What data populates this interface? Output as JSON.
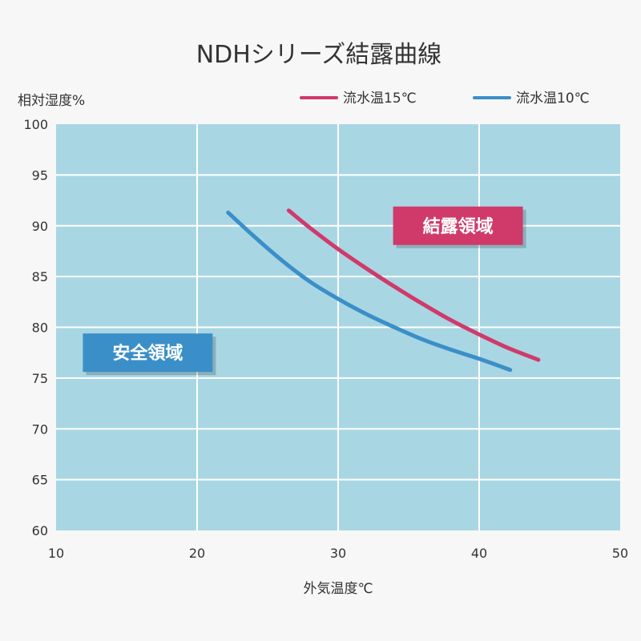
{
  "chart_data": {
    "type": "line",
    "title": "NDHシリーズ結露曲線",
    "xlabel": "外気温度℃",
    "ylabel": "相対湿度%",
    "xlim": [
      10,
      50
    ],
    "ylim": [
      60,
      100
    ],
    "x_ticks": [
      "10",
      "20",
      "30",
      "40",
      "50"
    ],
    "y_ticks": [
      "60",
      "65",
      "70",
      "75",
      "80",
      "85",
      "90",
      "95",
      "100"
    ],
    "grid": true,
    "legend_position": "top-right",
    "series": [
      {
        "name": "流水温15℃",
        "color": "#d03a6a",
        "points": [
          [
            26.5,
            91.5
          ],
          [
            28,
            89.8
          ],
          [
            30,
            87.7
          ],
          [
            32,
            85.8
          ],
          [
            34,
            84.0
          ],
          [
            36,
            82.3
          ],
          [
            38,
            80.7
          ],
          [
            40,
            79.3
          ],
          [
            42,
            78.0
          ],
          [
            44.2,
            76.8
          ]
        ]
      },
      {
        "name": "流水温10℃",
        "color": "#3b8fc8",
        "points": [
          [
            22.2,
            91.3
          ],
          [
            24,
            89.0
          ],
          [
            26,
            86.6
          ],
          [
            28,
            84.5
          ],
          [
            30,
            82.8
          ],
          [
            32,
            81.3
          ],
          [
            34,
            80.0
          ],
          [
            36,
            78.8
          ],
          [
            38,
            77.8
          ],
          [
            40,
            76.9
          ],
          [
            42.2,
            75.8
          ]
        ]
      }
    ],
    "annotations": [
      {
        "text": "結露領域",
        "color": "#d03a6a",
        "x": 38.5,
        "y": 90
      },
      {
        "text": "安全領域",
        "color": "#3b8fc8",
        "x": 16.5,
        "y": 77.5
      }
    ]
  },
  "colors": {
    "plot_background": "#a9d6e3",
    "grid": "#ffffff",
    "background": "#f7f7f7"
  }
}
